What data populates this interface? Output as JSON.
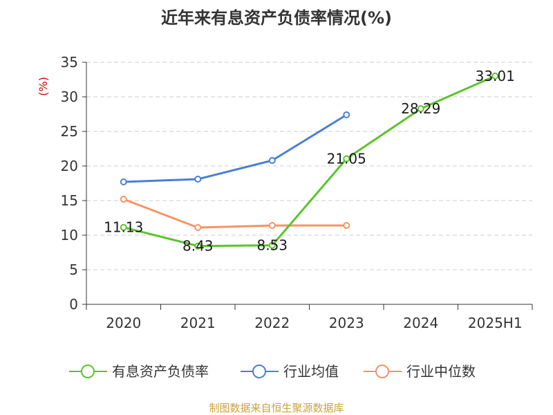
{
  "chart_data": {
    "type": "line",
    "title": "近年来有息资产负债率情况(%)",
    "ylabel": "(%)",
    "xlabel": "",
    "categories": [
      "2020",
      "2021",
      "2022",
      "2023",
      "2024",
      "2025H1"
    ],
    "ylim": [
      0,
      35
    ],
    "yticks": [
      0,
      5,
      10,
      15,
      20,
      25,
      30,
      35
    ],
    "grid": true,
    "legend_position": "bottom",
    "series": [
      {
        "name": "有息资产负债率",
        "color": "#5ac42a",
        "values": [
          11.13,
          8.43,
          8.53,
          21.05,
          28.29,
          33.01
        ],
        "labels": [
          "11.13",
          "8.43",
          "8.53",
          "21.05",
          "28.29",
          "33.01"
        ]
      },
      {
        "name": "行业均值",
        "color": "#4a7fd4",
        "values": [
          17.7,
          18.1,
          20.8,
          27.4,
          null,
          null
        ],
        "labels": []
      },
      {
        "name": "行业中位数",
        "color": "#f59362",
        "values": [
          15.2,
          11.1,
          11.4,
          11.4,
          null,
          null
        ],
        "labels": []
      }
    ]
  },
  "source": "制图数据来自恒生聚源数据库"
}
